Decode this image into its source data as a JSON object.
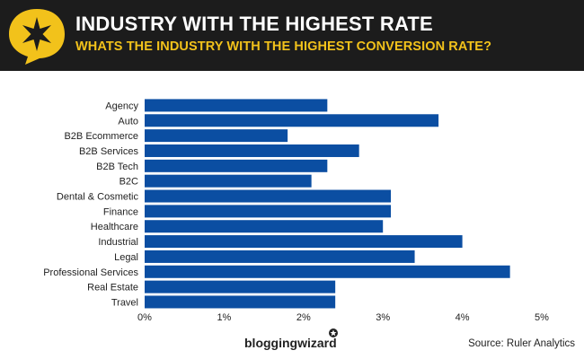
{
  "header": {
    "title": "INDUSTRY WITH THE HIGHEST RATE",
    "subtitle": "WHATS THE INDUSTRY WITH THE HIGHEST CONVERSION RATE?",
    "logo_icon": "star-speech-bubble-icon",
    "colors": {
      "background": "#1c1c1c",
      "title": "#ffffff",
      "subtitle": "#f2c21b",
      "badge": "#f2c21b"
    }
  },
  "chart_data": {
    "type": "bar",
    "orientation": "horizontal",
    "categories": [
      "Agency",
      "Auto",
      "B2B Ecommerce",
      "B2B Services",
      "B2B Tech",
      "B2C",
      "Dental & Cosmetic",
      "Finance",
      "Healthcare",
      "Industrial",
      "Legal",
      "Professional Services",
      "Real Estate",
      "Travel"
    ],
    "values": [
      2.3,
      3.7,
      1.8,
      2.7,
      2.3,
      2.1,
      3.1,
      3.1,
      3.0,
      4.0,
      3.4,
      4.6,
      2.4,
      2.4
    ],
    "xticks": [
      "0%",
      "1%",
      "2%",
      "3%",
      "4%",
      "5%"
    ],
    "xlim": [
      0,
      5
    ],
    "unit": "%",
    "grid": false,
    "bar_color": "#0b4ea2"
  },
  "footer": {
    "brand": "bloggingwizard",
    "brand_icon": "star-icon",
    "source": "Source: Ruler Analytics"
  }
}
